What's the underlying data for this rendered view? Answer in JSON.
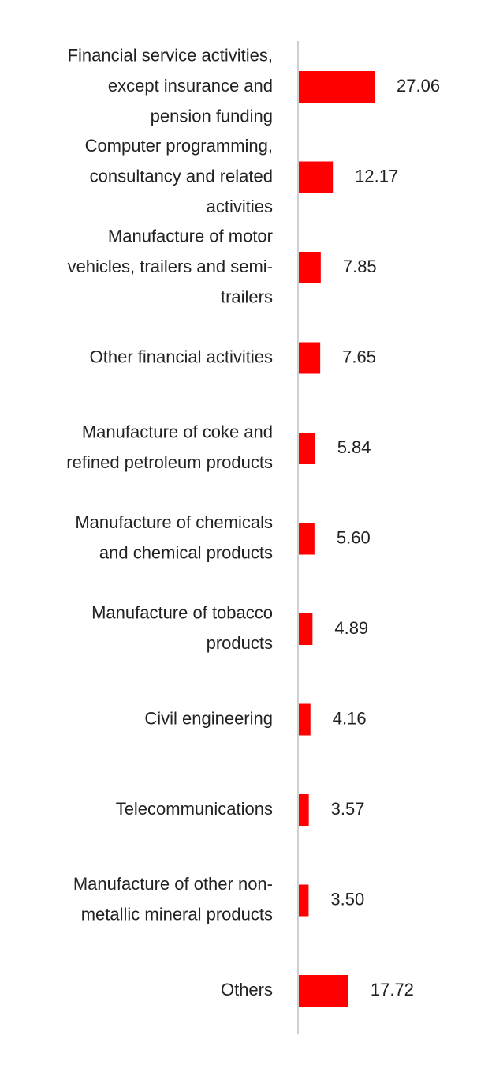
{
  "chart_data": {
    "type": "bar",
    "orientation": "horizontal",
    "categories": [
      "Financial service activities, except insurance and pension funding",
      "Computer programming, consultancy and related activities",
      "Manufacture of motor vehicles, trailers and semi-trailers",
      "Other financial activities",
      "Manufacture of coke and refined petroleum products",
      "Manufacture of chemicals and chemical products",
      "Manufacture of tobacco products",
      "Civil engineering",
      "Telecommunications",
      "Manufacture of other non-metallic mineral products",
      "Others"
    ],
    "category_lines": [
      [
        "Financial service activities,",
        "except insurance and",
        "pension funding"
      ],
      [
        "Computer programming,",
        "consultancy and related",
        "activities"
      ],
      [
        "Manufacture of motor",
        "vehicles, trailers and semi-",
        "trailers"
      ],
      [
        "Other financial activities"
      ],
      [
        "Manufacture of coke and",
        "refined petroleum products"
      ],
      [
        "Manufacture of chemicals",
        "and chemical products"
      ],
      [
        "Manufacture of tobacco",
        "products"
      ],
      [
        "Civil engineering"
      ],
      [
        "Telecommunications"
      ],
      [
        "Manufacture of other non-",
        "metallic mineral products"
      ],
      [
        "Others"
      ]
    ],
    "values": [
      27.06,
      12.17,
      7.85,
      7.65,
      5.84,
      5.6,
      4.89,
      4.16,
      3.57,
      3.5,
      17.72
    ],
    "value_labels": [
      "27.06",
      "12.17",
      "7.85",
      "7.65",
      "5.84",
      "5.60",
      "4.89",
      "4.16",
      "3.57",
      "3.50",
      "17.72"
    ],
    "title": "",
    "xlabel": "",
    "ylabel": "",
    "xlim": [
      0,
      100
    ],
    "grid": false,
    "legend": "none",
    "colors": {
      "bar": "#ff0000",
      "axis": "#d0d0d0",
      "text": "#222222"
    }
  }
}
